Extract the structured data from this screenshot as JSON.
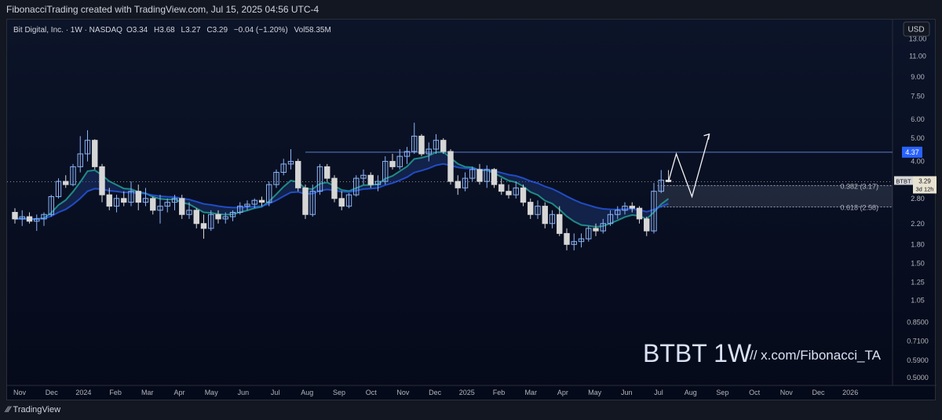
{
  "header": {
    "attribution": "FibonacciTrading created with TradingView.com, Jul 15, 2025 04:56 UTC-4"
  },
  "legend": {
    "symbol": "Bit Digital, Inc. · 1W · NASDAQ",
    "open_label": "O",
    "open": "3.34",
    "high_label": "H",
    "high": "3.68",
    "low_label": "L",
    "low": "3.27",
    "close_label": "C",
    "close": "3.29",
    "change": "−0.04 (−1.20%)",
    "vol_label": "Vol",
    "vol": "58.35M"
  },
  "currency_button": "USD",
  "watermark": {
    "ticker": "BTBT 1W",
    "handle": "//  x.com/Fibonacci_TA"
  },
  "footer": {
    "logo": "TradingView"
  },
  "colors": {
    "up_candle": "#8ab4f8",
    "down_candle": "#d6d6d6",
    "ema_teal": "#26a69a",
    "ema_blue": "#2962ff",
    "resistance": "#5b7cc9",
    "projection": "#f3f3f3"
  },
  "chart_data": {
    "type": "candlestick",
    "y_scale": "log",
    "ylim": [
      0.5,
      14.5
    ],
    "y_ticks": [
      "13.00",
      "11.00",
      "9.00",
      "7.50",
      "6.00",
      "5.00",
      "4.00",
      "2.80",
      "2.20",
      "1.80",
      "1.50",
      "1.25",
      "1.05",
      "0.8500",
      "0.7100",
      "0.5900",
      "0.5000"
    ],
    "x_ticks": [
      "Nov",
      "Dec",
      "2024",
      "Feb",
      "Mar",
      "Apr",
      "May",
      "Jun",
      "Jul",
      "Aug",
      "Sep",
      "Oct",
      "Nov",
      "Dec",
      "2025",
      "Feb",
      "Mar",
      "Apr",
      "May",
      "Jun",
      "Jul",
      "Aug",
      "Sep",
      "Oct",
      "Nov",
      "Dec",
      "2026"
    ],
    "price_labels": [
      {
        "label": "4.37",
        "value": 4.37
      },
      {
        "label": "BTBT",
        "sub": "3.29",
        "sub2": "3d 12h",
        "value": 3.29
      }
    ],
    "resistance_level": 4.37,
    "fib_levels": [
      {
        "label": "0.382 (3.17)",
        "value": 3.17
      },
      {
        "label": "0.618 (2.58)",
        "value": 2.58
      }
    ],
    "projection_path": [
      [
        3.29,
        3.29
      ],
      [
        4.3,
        4.3
      ],
      [
        2.85,
        2.85
      ],
      [
        5.2,
        5.2
      ]
    ],
    "candles": [
      [
        2.45,
        2.55,
        2.2,
        2.3
      ],
      [
        2.3,
        2.5,
        2.15,
        2.35
      ],
      [
        2.35,
        2.45,
        2.2,
        2.25
      ],
      [
        2.25,
        2.4,
        2.05,
        2.3
      ],
      [
        2.3,
        2.45,
        2.15,
        2.4
      ],
      [
        2.4,
        2.9,
        2.35,
        2.85
      ],
      [
        2.85,
        3.4,
        2.8,
        3.3
      ],
      [
        3.3,
        3.5,
        3.1,
        3.2
      ],
      [
        3.2,
        3.9,
        3.15,
        3.8
      ],
      [
        3.8,
        5.1,
        3.6,
        4.3
      ],
      [
        4.3,
        5.4,
        4.0,
        4.9
      ],
      [
        4.9,
        4.95,
        3.7,
        3.8
      ],
      [
        3.8,
        3.9,
        2.7,
        2.9
      ],
      [
        2.9,
        3.1,
        2.5,
        2.6
      ],
      [
        2.6,
        2.9,
        2.45,
        2.8
      ],
      [
        2.8,
        3.0,
        2.6,
        2.7
      ],
      [
        2.7,
        3.3,
        2.6,
        3.0
      ],
      [
        3.0,
        3.2,
        2.5,
        2.7
      ],
      [
        2.7,
        3.1,
        2.6,
        2.8
      ],
      [
        2.8,
        2.85,
        2.4,
        2.5
      ],
      [
        2.5,
        2.9,
        2.2,
        2.6
      ],
      [
        2.6,
        2.8,
        2.45,
        2.7
      ],
      [
        2.7,
        2.9,
        2.5,
        2.8
      ],
      [
        2.8,
        2.9,
        2.3,
        2.4
      ],
      [
        2.4,
        2.7,
        2.3,
        2.5
      ],
      [
        2.5,
        2.55,
        2.1,
        2.2
      ],
      [
        2.2,
        2.4,
        1.9,
        2.1
      ],
      [
        2.1,
        2.5,
        2.05,
        2.4
      ],
      [
        2.4,
        2.5,
        2.2,
        2.3
      ],
      [
        2.3,
        2.45,
        2.2,
        2.35
      ],
      [
        2.35,
        2.5,
        2.25,
        2.45
      ],
      [
        2.45,
        2.7,
        2.4,
        2.6
      ],
      [
        2.6,
        2.75,
        2.5,
        2.65
      ],
      [
        2.65,
        2.8,
        2.55,
        2.75
      ],
      [
        2.75,
        2.85,
        2.6,
        2.7
      ],
      [
        2.7,
        3.3,
        2.6,
        3.2
      ],
      [
        3.2,
        3.7,
        3.1,
        3.6
      ],
      [
        3.6,
        4.1,
        3.5,
        3.9
      ],
      [
        3.9,
        4.5,
        3.7,
        4.0
      ],
      [
        4.0,
        4.1,
        3.0,
        3.1
      ],
      [
        3.1,
        3.2,
        2.3,
        2.4
      ],
      [
        2.4,
        3.2,
        2.35,
        3.0
      ],
      [
        3.0,
        3.9,
        2.9,
        3.8
      ],
      [
        3.8,
        3.9,
        3.3,
        3.4
      ],
      [
        3.4,
        3.5,
        2.7,
        2.8
      ],
      [
        2.8,
        3.0,
        2.5,
        2.6
      ],
      [
        2.6,
        2.95,
        2.55,
        2.9
      ],
      [
        2.9,
        3.5,
        2.85,
        3.4
      ],
      [
        3.4,
        3.7,
        3.2,
        3.5
      ],
      [
        3.5,
        3.6,
        3.1,
        3.2
      ],
      [
        3.2,
        3.5,
        3.0,
        3.3
      ],
      [
        3.3,
        4.2,
        3.2,
        4.0
      ],
      [
        4.0,
        4.3,
        3.7,
        3.8
      ],
      [
        3.8,
        4.5,
        3.7,
        4.2
      ],
      [
        4.2,
        4.6,
        3.9,
        4.4
      ],
      [
        4.4,
        5.8,
        4.3,
        5.1
      ],
      [
        5.1,
        5.2,
        4.2,
        4.3
      ],
      [
        4.3,
        4.8,
        4.0,
        4.5
      ],
      [
        4.5,
        5.2,
        4.3,
        4.9
      ],
      [
        4.9,
        5.0,
        4.3,
        4.4
      ],
      [
        4.4,
        4.5,
        3.2,
        3.3
      ],
      [
        3.3,
        3.5,
        2.9,
        3.1
      ],
      [
        3.1,
        3.6,
        3.0,
        3.4
      ],
      [
        3.4,
        3.8,
        3.3,
        3.7
      ],
      [
        3.7,
        3.9,
        3.2,
        3.3
      ],
      [
        3.3,
        3.85,
        3.1,
        3.7
      ],
      [
        3.7,
        3.75,
        3.1,
        3.2
      ],
      [
        3.2,
        3.4,
        2.9,
        3.0
      ],
      [
        3.0,
        3.2,
        2.8,
        2.9
      ],
      [
        2.9,
        3.3,
        2.8,
        3.1
      ],
      [
        3.1,
        3.2,
        2.6,
        2.7
      ],
      [
        2.7,
        2.8,
        2.3,
        2.4
      ],
      [
        2.4,
        2.75,
        2.3,
        2.6
      ],
      [
        2.6,
        2.7,
        2.1,
        2.2
      ],
      [
        2.2,
        2.5,
        2.1,
        2.4
      ],
      [
        2.4,
        2.6,
        1.95,
        2.0
      ],
      [
        2.0,
        2.1,
        1.7,
        1.8
      ],
      [
        1.8,
        2.0,
        1.7,
        1.85
      ],
      [
        1.85,
        2.0,
        1.75,
        1.9
      ],
      [
        1.9,
        2.15,
        1.85,
        2.1
      ],
      [
        2.1,
        2.2,
        1.95,
        2.05
      ],
      [
        2.05,
        2.3,
        2.0,
        2.2
      ],
      [
        2.2,
        2.5,
        2.15,
        2.4
      ],
      [
        2.4,
        2.6,
        2.3,
        2.5
      ],
      [
        2.5,
        2.7,
        2.4,
        2.6
      ],
      [
        2.6,
        2.7,
        2.45,
        2.55
      ],
      [
        2.55,
        2.6,
        2.2,
        2.3
      ],
      [
        2.3,
        2.35,
        1.95,
        2.05
      ],
      [
        2.05,
        3.25,
        2.0,
        3.0
      ],
      [
        3.0,
        3.68,
        2.95,
        3.34
      ],
      [
        3.34,
        3.68,
        3.27,
        3.29
      ]
    ]
  }
}
